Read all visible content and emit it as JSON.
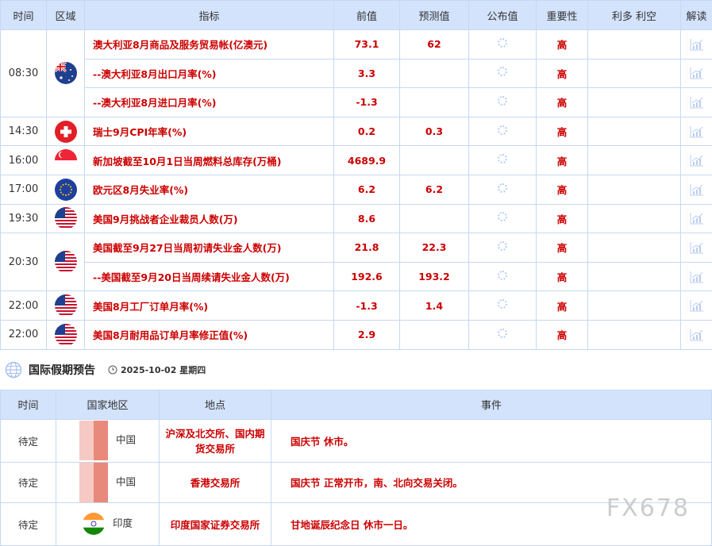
{
  "calendar": {
    "headers": [
      "时间",
      "区域",
      "指标",
      "前值",
      "预测值",
      "公布值",
      "重要性",
      "利多 利空",
      "解读"
    ],
    "rows": [
      {
        "time": "08:30",
        "flag": "australia",
        "rowspan": 3,
        "indicator": "澳大利亚8月商品及服务贸易帐(亿澳元)",
        "prev": "73.1",
        "forecast": "62",
        "importance": "高"
      },
      {
        "indicator": "--澳大利亚8月出口月率(%)",
        "prev": "3.3",
        "forecast": "",
        "importance": "高"
      },
      {
        "indicator": "--澳大利亚8月进口月率(%)",
        "prev": "-1.3",
        "forecast": "",
        "importance": "高"
      },
      {
        "time": "14:30",
        "flag": "switzerland",
        "rowspan": 1,
        "indicator": "瑞士9月CPI年率(%)",
        "prev": "0.2",
        "forecast": "0.3",
        "importance": "高"
      },
      {
        "time": "16:00",
        "flag": "singapore",
        "rowspan": 1,
        "indicator": "新加坡截至10月1日当周燃料总库存(万桶)",
        "prev": "4689.9",
        "forecast": "",
        "importance": "高"
      },
      {
        "time": "17:00",
        "flag": "eu",
        "rowspan": 1,
        "indicator": "欧元区8月失业率(%)",
        "prev": "6.2",
        "forecast": "6.2",
        "importance": "高"
      },
      {
        "time": "19:30",
        "flag": "usa",
        "rowspan": 1,
        "indicator": "美国9月挑战者企业裁员人数(万)",
        "prev": "8.6",
        "forecast": "",
        "importance": "高"
      },
      {
        "time": "20:30",
        "flag": "usa",
        "rowspan": 2,
        "indicator": "美国截至9月27日当周初请失业金人数(万)",
        "prev": "21.8",
        "forecast": "22.3",
        "importance": "高"
      },
      {
        "indicator": "--美国截至9月20日当周续请失业金人数(万)",
        "prev": "192.6",
        "forecast": "193.2",
        "importance": "高"
      },
      {
        "time": "22:00",
        "flag": "usa",
        "rowspan": 1,
        "indicator": "美国8月工厂订单月率(%)",
        "prev": "-1.3",
        "forecast": "1.4",
        "importance": "高"
      },
      {
        "time": "22:00",
        "flag": "usa",
        "rowspan": 1,
        "indicator": "美国8月耐用品订单月率修正值(%)",
        "prev": "2.9",
        "forecast": "",
        "importance": "高"
      }
    ]
  },
  "holiday": {
    "title": "国际假期预告",
    "date": "2025-10-02 星期四",
    "headers": [
      "时间",
      "国家地区",
      "地点",
      "事件"
    ],
    "rows": [
      {
        "time": "待定",
        "country": "中国",
        "flag": "china-blurred",
        "place": "沪深及北交所、国内期货交易所",
        "event": "国庆节 休市。"
      },
      {
        "time": "待定",
        "country": "中国",
        "flag": "china-blurred",
        "place": "香港交易所",
        "event": "国庆节 正常开市，南、北向交易关闭。"
      },
      {
        "time": "待定",
        "country": "印度",
        "flag": "india",
        "place": "印度国家证券交易所",
        "event": "甘地诞辰纪念日 休市一日。"
      }
    ]
  },
  "watermark": "FX678",
  "colors": {
    "accent_red": "#cc0000",
    "header_bg": "#d3e3fc",
    "border": "#c6d8f3"
  }
}
